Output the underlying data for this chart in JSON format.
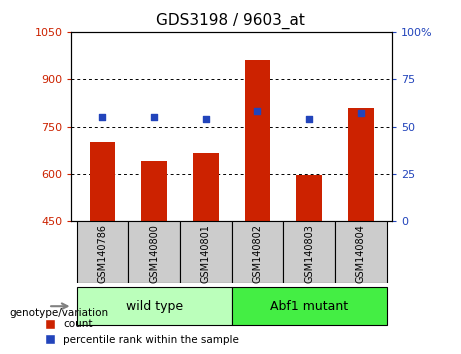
{
  "title": "GDS3198 / 9603_at",
  "samples": [
    "GSM140786",
    "GSM140800",
    "GSM140801",
    "GSM140802",
    "GSM140803",
    "GSM140804"
  ],
  "counts": [
    700,
    640,
    665,
    960,
    598,
    810
  ],
  "percentile_ranks": [
    55,
    55,
    54,
    58,
    54,
    57
  ],
  "ylim_left": [
    450,
    1050
  ],
  "ylim_right": [
    0,
    100
  ],
  "yticks_left": [
    450,
    600,
    750,
    900,
    1050
  ],
  "yticks_right": [
    0,
    25,
    50,
    75,
    100
  ],
  "bar_color": "#cc2200",
  "dot_color": "#2244bb",
  "group1_label": "wild type",
  "group2_label": "Abf1 mutant",
  "group1_color": "#bbffbb",
  "group2_color": "#44ee44",
  "group_bg_color": "#cccccc",
  "legend_count_label": "count",
  "legend_pct_label": "percentile rank within the sample",
  "left_axis_color": "#cc2200",
  "right_axis_color": "#2244bb",
  "genotype_label": "genotype/variation",
  "title_color": "#000000"
}
